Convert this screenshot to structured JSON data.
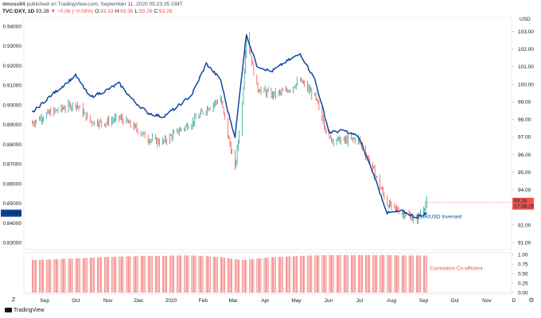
{
  "header": {
    "publisher": "dmoss94",
    "published_text": "published on TradingView.com, September 11, 2020 05:23:35 GMT",
    "symbol": "TVC:DXY, 1D",
    "last": "93.28",
    "change": "▼ −0.08 (−0.08%)",
    "o_label": "O:",
    "o_value": "93.33",
    "h_label": "H:",
    "h_value": "93.35",
    "l_label": "L:",
    "l_value": "93.26",
    "c_label": "C:",
    "c_value": "93.28"
  },
  "footer": {
    "brand": "TradingView",
    "z_button": "Z",
    "settings_icon": "gear-icon"
  },
  "chart_data": [
    {
      "type": "line",
      "subtype": "ohlc-bars-with-line-overlay",
      "title": "",
      "x_labels": [
        "Sep",
        "Oct",
        "Nov",
        "Dec",
        "2020",
        "Feb",
        "Mar",
        "Apr",
        "May",
        "Jun",
        "Jul",
        "Aug",
        "Sep",
        "Oct",
        "Nov",
        "D"
      ],
      "right_axis": {
        "unit_label": "USD",
        "ticks": [
          91.0,
          92.0,
          93.0,
          94.0,
          95.0,
          96.0,
          97.0,
          98.0,
          99.0,
          100.0,
          101.0,
          102.0,
          103.0
        ],
        "ylim": [
          90.6,
          103.8
        ]
      },
      "left_axis": {
        "ticks": [
          0.83,
          0.84,
          0.85,
          0.86,
          0.87,
          0.88,
          0.89,
          0.9,
          0.91,
          0.92,
          0.93,
          0.94
        ],
        "tick_labels": [
          "0.83000",
          "0.84000",
          "0.85000",
          "0.86000",
          "0.87000",
          "0.88000",
          "0.89000",
          "0.90000",
          "0.91000",
          "0.92000",
          "0.93000",
          "0.94000"
        ],
        "ylim": [
          0.8265,
          0.9445
        ]
      },
      "current_price_label": {
        "value": "93.28",
        "countdown": "17:36:25",
        "color": "#ef5350"
      },
      "current_left_label": {
        "value": "0.84503",
        "color": "#0d47a1"
      },
      "series": [
        {
          "name": "TVC:DXY",
          "style": "ohlc-bars",
          "up_color": "#26a69a",
          "down_color": "#ef5350",
          "axis": "right",
          "x": [
            "2019-08-26",
            "2019-09-09",
            "2019-09-23",
            "2019-10-07",
            "2019-10-21",
            "2019-11-04",
            "2019-11-18",
            "2019-12-02",
            "2019-12-16",
            "2019-12-30",
            "2020-01-13",
            "2020-01-27",
            "2020-02-10",
            "2020-02-24",
            "2020-03-02",
            "2020-03-09",
            "2020-03-16",
            "2020-03-20",
            "2020-03-30",
            "2020-04-13",
            "2020-04-27",
            "2020-05-11",
            "2020-05-25",
            "2020-06-08",
            "2020-06-22",
            "2020-07-06",
            "2020-07-20",
            "2020-08-03",
            "2020-08-17",
            "2020-08-31",
            "2020-09-10"
          ],
          "values": [
            97.8,
            98.3,
            98.6,
            98.9,
            97.9,
            97.8,
            98.1,
            97.6,
            96.9,
            96.7,
            97.3,
            97.8,
            98.6,
            99.2,
            97.1,
            95.2,
            98.9,
            102.9,
            99.8,
            99.4,
            99.6,
            100.2,
            99.3,
            96.9,
            96.8,
            96.9,
            95.2,
            93.2,
            92.7,
            92.3,
            93.28
          ]
        },
        {
          "name": "EUR/USD Inversed",
          "style": "line",
          "color": "#0d47a1",
          "axis": "left",
          "x": [
            "2019-08-26",
            "2019-09-09",
            "2019-09-23",
            "2019-10-07",
            "2019-10-21",
            "2019-11-04",
            "2019-11-18",
            "2019-12-02",
            "2019-12-16",
            "2019-12-30",
            "2020-01-13",
            "2020-01-27",
            "2020-02-10",
            "2020-02-24",
            "2020-03-02",
            "2020-03-09",
            "2020-03-16",
            "2020-03-20",
            "2020-03-30",
            "2020-04-13",
            "2020-04-27",
            "2020-05-11",
            "2020-05-25",
            "2020-06-08",
            "2020-06-22",
            "2020-07-06",
            "2020-07-20",
            "2020-08-03",
            "2020-08-17",
            "2020-08-31",
            "2020-09-10"
          ],
          "values": [
            0.896,
            0.903,
            0.909,
            0.915,
            0.904,
            0.907,
            0.911,
            0.902,
            0.896,
            0.894,
            0.899,
            0.905,
            0.921,
            0.913,
            0.897,
            0.884,
            0.918,
            0.936,
            0.92,
            0.917,
            0.922,
            0.926,
            0.913,
            0.886,
            0.887,
            0.884,
            0.866,
            0.845,
            0.846,
            0.843,
            0.845
          ]
        }
      ],
      "annotations": [
        {
          "text": "EUR/USD Inversed",
          "color": "#0d47a1"
        }
      ]
    },
    {
      "type": "bar",
      "title": "",
      "series": [
        {
          "name": "Correlation Co-efficient",
          "color": "#ef5350",
          "values": [
            0.86,
            0.87,
            0.89,
            0.9,
            0.92,
            0.94,
            0.95,
            0.96,
            0.97,
            0.97,
            0.98,
            0.98,
            0.96,
            0.94,
            0.91,
            0.88,
            0.86,
            0.87,
            0.9,
            0.93,
            0.95,
            0.97,
            0.98,
            0.99,
            0.99,
            0.99,
            0.99,
            0.99,
            0.98,
            0.98,
            0.98
          ]
        }
      ],
      "right_axis": {
        "ticks": [
          0.0,
          0.25,
          0.5,
          0.75,
          1.0
        ],
        "tick_labels": [
          "0.00",
          "0.25",
          "0.50",
          "0.75",
          "1.00"
        ],
        "ylim": [
          0,
          1.05
        ]
      },
      "annotations": [
        {
          "text": "Correlation Co-efficient",
          "color": "#ef5350"
        }
      ]
    }
  ]
}
